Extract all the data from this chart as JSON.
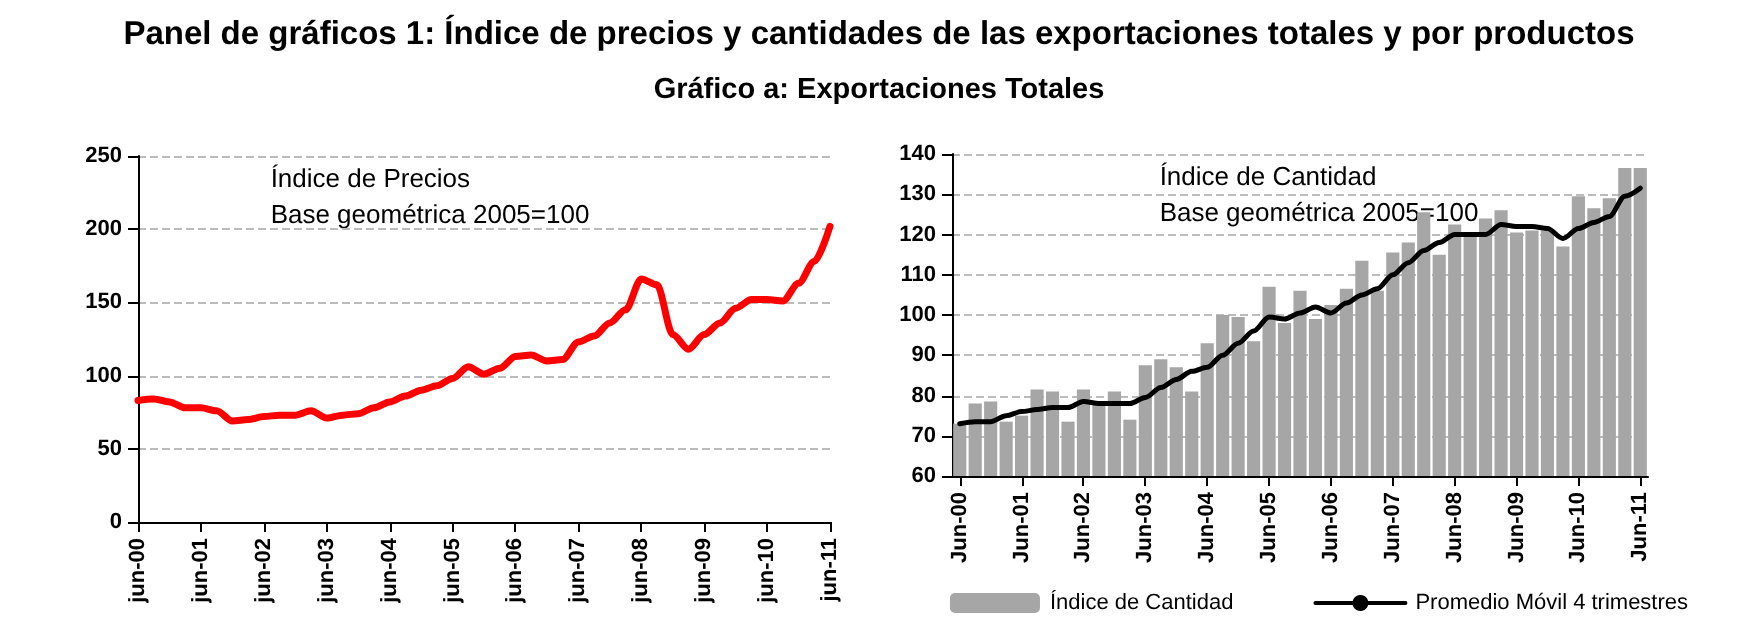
{
  "chart_data": [
    {
      "type": "line",
      "title": "Panel de gráficos 1: Índice de precios y cantidades de las exportaciones totales y por productos",
      "subtitle": "Gráfico a: Exportaciones Totales",
      "annotations": [
        "Índice de Precios\nBase geométrica 2005=100"
      ],
      "categories": [
        "jun-00",
        null,
        null,
        null,
        "jun-01",
        null,
        null,
        null,
        "jun-02",
        null,
        null,
        null,
        "jun-03",
        null,
        null,
        null,
        "jun-04",
        null,
        null,
        null,
        "jun-05",
        null,
        null,
        null,
        "jun-06",
        null,
        null,
        null,
        "jun-07",
        null,
        null,
        null,
        "jun-08",
        null,
        null,
        null,
        "jun-09",
        null,
        null,
        null,
        "jun-10",
        null,
        null,
        null,
        "jun-11"
      ],
      "series": [
        {
          "color": "#ff0000",
          "values": [
            83,
            84,
            82,
            78,
            78,
            76,
            69,
            70,
            72,
            73,
            73,
            76,
            71,
            73,
            74,
            78,
            82,
            86,
            90,
            93,
            98,
            106,
            101,
            105,
            113,
            114,
            110,
            111,
            123,
            127,
            136,
            145,
            166,
            162,
            128,
            118,
            128,
            136,
            146,
            152,
            152,
            151,
            163,
            178,
            202
          ]
        }
      ],
      "ylim": [
        0,
        250
      ],
      "yticks": [
        0,
        50,
        100,
        150,
        200,
        250
      ],
      "grid": "y",
      "legend": false,
      "marker": "none"
    },
    {
      "type": "bar",
      "annotations": [
        "Índice de Cantidad\nBase geométrica 2005=100"
      ],
      "categories": [
        "Jun-00",
        null,
        null,
        null,
        "Jun-01",
        null,
        null,
        null,
        "Jun-02",
        null,
        null,
        null,
        "Jun-03",
        null,
        null,
        null,
        "Jun-04",
        null,
        null,
        null,
        "Jun-05",
        null,
        null,
        null,
        "Jun-06",
        null,
        null,
        null,
        "Jun-07",
        null,
        null,
        null,
        "Jun-08",
        null,
        null,
        null,
        "Jun-09",
        null,
        null,
        null,
        "Jun-10",
        null,
        null,
        null,
        "Jun-11"
      ],
      "series": [
        {
          "name": "Índice de Cantidad",
          "type": "bar",
          "color": "#a6a6a6",
          "values": [
            73,
            78,
            78.5,
            73.5,
            75,
            81.5,
            81,
            73.5,
            81.5,
            78,
            81,
            74,
            87.5,
            89,
            87,
            81,
            93,
            100,
            99.5,
            93.5,
            107,
            98,
            106,
            99,
            102.5,
            106.5,
            113.5,
            106,
            115.5,
            118,
            125.5,
            115,
            122.5,
            119.5,
            124,
            126,
            120.5,
            121,
            121,
            117,
            129.5,
            126.5,
            129,
            136.5,
            136.5
          ]
        },
        {
          "name": "Promedio Móvil 4 trimestres",
          "type": "line",
          "color": "#000000",
          "values": [
            73,
            73.5,
            73.5,
            75,
            76,
            76.5,
            77,
            77,
            78.5,
            78,
            78,
            78,
            79.5,
            82,
            84,
            86,
            87,
            90,
            93,
            96,
            99.5,
            99,
            100.5,
            102,
            100.5,
            103,
            105,
            106.5,
            110,
            113,
            116,
            118,
            120,
            120,
            120,
            122.5,
            122,
            122,
            121.5,
            119,
            121.5,
            123,
            124.5,
            129.5,
            131.5
          ]
        }
      ],
      "ylim": [
        60,
        140
      ],
      "yticks": [
        60,
        70,
        80,
        90,
        100,
        110,
        120,
        130,
        140
      ],
      "grid": "y",
      "legend": "bottom",
      "marker": "none"
    }
  ]
}
